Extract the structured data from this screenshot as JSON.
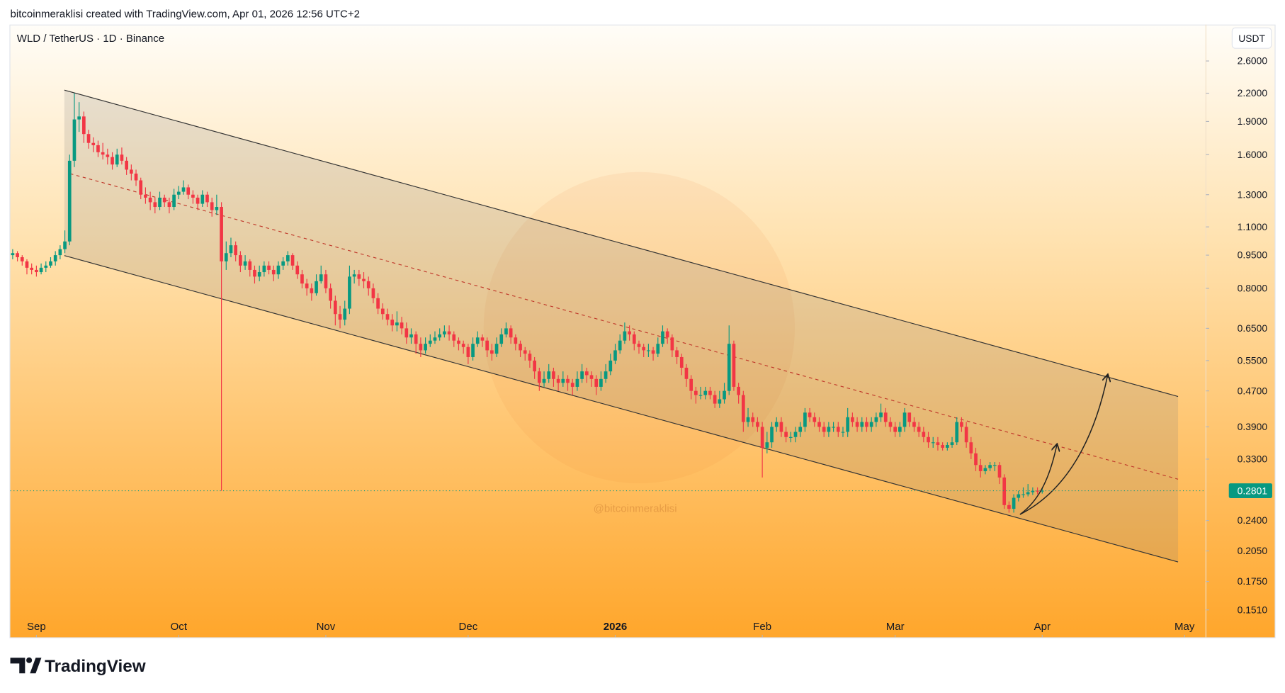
{
  "header": "bitcoinmeraklisi created with TradingView.com, Apr 01, 2026 12:56 UTC+2",
  "symbol": "WLD / TetherUS · 1D · Binance",
  "currency": "USDT",
  "watermark": "@bitcoinmeraklisi",
  "brand": "TradingView",
  "chart_data": {
    "type": "candlestick",
    "log_scale": true,
    "up_color": "#089981",
    "down_color": "#f23645",
    "xlim": [
      -5.5,
      246.5
    ],
    "xticks": [
      {
        "value": 0,
        "label": "Sep"
      },
      {
        "value": 30,
        "label": "Oct"
      },
      {
        "value": 61,
        "label": "Nov"
      },
      {
        "value": 91,
        "label": "Dec"
      },
      {
        "value": 122,
        "label": "2026"
      },
      {
        "value": 153,
        "label": "Feb"
      },
      {
        "value": 181,
        "label": "Mar"
      },
      {
        "value": 212,
        "label": "Apr"
      },
      {
        "value": 242,
        "label": "May"
      }
    ],
    "ylim": [
      0.131,
      3.14
    ],
    "yticks": [
      {
        "value": 2.6,
        "label": "2.6000"
      },
      {
        "value": 2.2,
        "label": "2.2000"
      },
      {
        "value": 1.9,
        "label": "1.9000"
      },
      {
        "value": 1.6,
        "label": "1.6000"
      },
      {
        "value": 1.3,
        "label": "1.3000"
      },
      {
        "value": 1.1,
        "label": "1.1000"
      },
      {
        "value": 0.95,
        "label": "0.9500"
      },
      {
        "value": 0.8,
        "label": "0.8000"
      },
      {
        "value": 0.65,
        "label": "0.6500"
      },
      {
        "value": 0.55,
        "label": "0.5500"
      },
      {
        "value": 0.47,
        "label": "0.4700"
      },
      {
        "value": 0.39,
        "label": "0.3900"
      },
      {
        "value": 0.33,
        "label": "0.3300"
      },
      {
        "value": 0.24,
        "label": "0.2400"
      },
      {
        "value": 0.205,
        "label": "0.2050"
      },
      {
        "value": 0.175,
        "label": "0.1750"
      },
      {
        "value": 0.151,
        "label": "0.1510"
      }
    ],
    "x": [
      -5,
      -4,
      -3,
      -2,
      -1,
      0,
      1,
      2,
      3,
      4,
      5,
      6,
      7,
      8,
      9,
      10,
      11,
      12,
      13,
      14,
      15,
      16,
      17,
      18,
      19,
      20,
      21,
      22,
      23,
      24,
      25,
      26,
      27,
      28,
      29,
      30,
      31,
      32,
      33,
      34,
      35,
      36,
      37,
      38,
      39,
      40,
      41,
      42,
      43,
      44,
      45,
      46,
      47,
      48,
      49,
      50,
      51,
      52,
      53,
      54,
      55,
      56,
      57,
      58,
      59,
      60,
      61,
      62,
      63,
      64,
      65,
      66,
      67,
      68,
      69,
      70,
      71,
      72,
      73,
      74,
      75,
      76,
      77,
      78,
      79,
      80,
      81,
      82,
      83,
      84,
      85,
      86,
      87,
      88,
      89,
      90,
      91,
      92,
      93,
      94,
      95,
      96,
      97,
      98,
      99,
      100,
      101,
      102,
      103,
      104,
      105,
      106,
      107,
      108,
      109,
      110,
      111,
      112,
      113,
      114,
      115,
      116,
      117,
      118,
      119,
      120,
      121,
      122,
      123,
      124,
      125,
      126,
      127,
      128,
      129,
      130,
      131,
      132,
      133,
      134,
      135,
      136,
      137,
      138,
      139,
      140,
      141,
      142,
      143,
      144,
      145,
      146,
      147,
      148,
      149,
      150,
      151,
      152,
      153,
      154,
      155,
      156,
      157,
      158,
      159,
      160,
      161,
      162,
      163,
      164,
      165,
      166,
      167,
      168,
      169,
      170,
      171,
      172,
      173,
      174,
      175,
      176,
      177,
      178,
      179,
      180,
      181,
      182,
      183,
      184,
      185,
      186,
      187,
      188,
      189,
      190,
      191,
      192,
      193,
      194,
      195,
      196,
      197,
      198,
      199,
      200,
      201,
      202,
      203,
      204,
      205,
      206,
      207,
      208,
      209,
      210,
      211,
      212
    ],
    "open": [
      0.95,
      0.96,
      0.94,
      0.92,
      0.89,
      0.88,
      0.87,
      0.89,
      0.9,
      0.92,
      0.95,
      0.98,
      1.02,
      1.55,
      1.92,
      1.95,
      1.78,
      1.7,
      1.68,
      1.62,
      1.6,
      1.58,
      1.52,
      1.6,
      1.55,
      1.48,
      1.45,
      1.4,
      1.3,
      1.28,
      1.25,
      1.22,
      1.28,
      1.25,
      1.22,
      1.3,
      1.32,
      1.35,
      1.3,
      1.28,
      1.24,
      1.3,
      1.25,
      1.2,
      1.22,
      0.92,
      0.96,
      1.0,
      0.95,
      0.9,
      0.92,
      0.88,
      0.85,
      0.87,
      0.9,
      0.88,
      0.86,
      0.9,
      0.92,
      0.95,
      0.9,
      0.86,
      0.82,
      0.8,
      0.78,
      0.83,
      0.86,
      0.8,
      0.75,
      0.7,
      0.68,
      0.72,
      0.85,
      0.86,
      0.84,
      0.83,
      0.8,
      0.76,
      0.72,
      0.7,
      0.68,
      0.66,
      0.67,
      0.65,
      0.62,
      0.63,
      0.6,
      0.58,
      0.6,
      0.61,
      0.62,
      0.63,
      0.64,
      0.63,
      0.61,
      0.6,
      0.59,
      0.56,
      0.6,
      0.62,
      0.61,
      0.58,
      0.57,
      0.6,
      0.63,
      0.65,
      0.62,
      0.6,
      0.58,
      0.57,
      0.55,
      0.52,
      0.49,
      0.5,
      0.52,
      0.5,
      0.49,
      0.5,
      0.49,
      0.48,
      0.5,
      0.52,
      0.51,
      0.5,
      0.48,
      0.5,
      0.52,
      0.55,
      0.58,
      0.61,
      0.64,
      0.63,
      0.6,
      0.59,
      0.58,
      0.58,
      0.57,
      0.6,
      0.64,
      0.62,
      0.58,
      0.56,
      0.53,
      0.5,
      0.47,
      0.46,
      0.46,
      0.47,
      0.46,
      0.44,
      0.45,
      0.47,
      0.6,
      0.48,
      0.46,
      0.4,
      0.41,
      0.4,
      0.39,
      0.35,
      0.36,
      0.39,
      0.4,
      0.38,
      0.37,
      0.37,
      0.38,
      0.39,
      0.42,
      0.41,
      0.4,
      0.39,
      0.38,
      0.39,
      0.39,
      0.38,
      0.38,
      0.41,
      0.4,
      0.39,
      0.4,
      0.39,
      0.4,
      0.41,
      0.42,
      0.4,
      0.39,
      0.38,
      0.39,
      0.42,
      0.4,
      0.39,
      0.38,
      0.37,
      0.36,
      0.36,
      0.355,
      0.35,
      0.355,
      0.36,
      0.4,
      0.39,
      0.36,
      0.34,
      0.32,
      0.31,
      0.315,
      0.32,
      0.32,
      0.3,
      0.26,
      0.255,
      0.27,
      0.275,
      0.275,
      0.278,
      0.28,
      0.279
    ],
    "high": [
      0.98,
      0.97,
      0.95,
      0.93,
      0.91,
      0.9,
      0.91,
      0.92,
      0.94,
      0.97,
      1.0,
      1.08,
      1.6,
      2.2,
      2.1,
      2.0,
      1.82,
      1.75,
      1.72,
      1.7,
      1.65,
      1.62,
      1.65,
      1.66,
      1.58,
      1.52,
      1.48,
      1.42,
      1.35,
      1.32,
      1.28,
      1.32,
      1.3,
      1.28,
      1.34,
      1.36,
      1.4,
      1.37,
      1.33,
      1.3,
      1.33,
      1.32,
      1.28,
      1.3,
      1.25,
      1.02,
      1.04,
      1.02,
      0.97,
      0.95,
      0.93,
      0.9,
      0.9,
      0.92,
      0.92,
      0.9,
      0.92,
      0.94,
      0.97,
      0.96,
      0.92,
      0.88,
      0.84,
      0.82,
      0.86,
      0.9,
      0.88,
      0.82,
      0.77,
      0.73,
      0.75,
      0.9,
      0.88,
      0.88,
      0.87,
      0.85,
      0.82,
      0.78,
      0.74,
      0.72,
      0.7,
      0.71,
      0.69,
      0.67,
      0.65,
      0.64,
      0.62,
      0.62,
      0.63,
      0.64,
      0.65,
      0.66,
      0.66,
      0.64,
      0.62,
      0.61,
      0.6,
      0.62,
      0.64,
      0.63,
      0.62,
      0.6,
      0.62,
      0.65,
      0.67,
      0.66,
      0.63,
      0.61,
      0.59,
      0.58,
      0.56,
      0.53,
      0.52,
      0.54,
      0.53,
      0.51,
      0.52,
      0.51,
      0.5,
      0.52,
      0.54,
      0.53,
      0.52,
      0.51,
      0.52,
      0.54,
      0.57,
      0.6,
      0.63,
      0.67,
      0.66,
      0.64,
      0.61,
      0.6,
      0.6,
      0.59,
      0.62,
      0.66,
      0.65,
      0.63,
      0.59,
      0.57,
      0.54,
      0.51,
      0.48,
      0.48,
      0.48,
      0.48,
      0.47,
      0.47,
      0.49,
      0.66,
      0.61,
      0.49,
      0.47,
      0.43,
      0.42,
      0.41,
      0.4,
      0.38,
      0.4,
      0.41,
      0.41,
      0.39,
      0.38,
      0.39,
      0.4,
      0.43,
      0.43,
      0.42,
      0.41,
      0.4,
      0.4,
      0.4,
      0.4,
      0.39,
      0.43,
      0.42,
      0.41,
      0.41,
      0.41,
      0.41,
      0.42,
      0.44,
      0.43,
      0.41,
      0.4,
      0.4,
      0.43,
      0.42,
      0.41,
      0.4,
      0.39,
      0.38,
      0.37,
      0.37,
      0.36,
      0.36,
      0.37,
      0.41,
      0.41,
      0.4,
      0.37,
      0.35,
      0.33,
      0.32,
      0.325,
      0.325,
      0.325,
      0.305,
      0.265,
      0.275,
      0.28,
      0.285,
      0.29,
      0.285,
      0.285,
      0.284
    ],
    "low": [
      0.93,
      0.92,
      0.9,
      0.86,
      0.86,
      0.85,
      0.86,
      0.87,
      0.89,
      0.9,
      0.93,
      0.96,
      1.0,
      1.5,
      1.8,
      1.7,
      1.65,
      1.62,
      1.58,
      1.56,
      1.52,
      1.48,
      1.5,
      1.52,
      1.44,
      1.4,
      1.36,
      1.27,
      1.24,
      1.2,
      1.18,
      1.2,
      1.22,
      1.18,
      1.2,
      1.27,
      1.3,
      1.27,
      1.24,
      1.2,
      1.22,
      1.22,
      1.16,
      1.17,
      0.28,
      0.88,
      0.94,
      0.92,
      0.87,
      0.88,
      0.85,
      0.82,
      0.83,
      0.85,
      0.86,
      0.83,
      0.84,
      0.88,
      0.9,
      0.88,
      0.84,
      0.8,
      0.77,
      0.75,
      0.77,
      0.82,
      0.78,
      0.72,
      0.66,
      0.65,
      0.66,
      0.7,
      0.82,
      0.81,
      0.8,
      0.77,
      0.74,
      0.7,
      0.68,
      0.66,
      0.64,
      0.64,
      0.63,
      0.6,
      0.6,
      0.57,
      0.56,
      0.57,
      0.59,
      0.6,
      0.61,
      0.62,
      0.61,
      0.59,
      0.58,
      0.57,
      0.54,
      0.55,
      0.59,
      0.59,
      0.56,
      0.55,
      0.56,
      0.59,
      0.62,
      0.6,
      0.58,
      0.56,
      0.55,
      0.53,
      0.5,
      0.47,
      0.48,
      0.49,
      0.48,
      0.47,
      0.48,
      0.47,
      0.46,
      0.47,
      0.49,
      0.49,
      0.48,
      0.46,
      0.47,
      0.49,
      0.51,
      0.54,
      0.57,
      0.6,
      0.61,
      0.58,
      0.57,
      0.56,
      0.56,
      0.55,
      0.56,
      0.59,
      0.6,
      0.56,
      0.54,
      0.51,
      0.48,
      0.45,
      0.44,
      0.45,
      0.45,
      0.45,
      0.43,
      0.43,
      0.44,
      0.46,
      0.47,
      0.44,
      0.38,
      0.39,
      0.39,
      0.38,
      0.3,
      0.34,
      0.35,
      0.38,
      0.37,
      0.36,
      0.36,
      0.36,
      0.37,
      0.38,
      0.4,
      0.39,
      0.38,
      0.37,
      0.37,
      0.38,
      0.37,
      0.37,
      0.37,
      0.39,
      0.38,
      0.38,
      0.38,
      0.38,
      0.39,
      0.4,
      0.39,
      0.38,
      0.37,
      0.37,
      0.38,
      0.39,
      0.38,
      0.37,
      0.36,
      0.35,
      0.35,
      0.345,
      0.345,
      0.345,
      0.35,
      0.355,
      0.38,
      0.35,
      0.33,
      0.31,
      0.3,
      0.305,
      0.31,
      0.31,
      0.29,
      0.255,
      0.25,
      0.25,
      0.265,
      0.27,
      0.272,
      0.274,
      0.275,
      0.276
    ],
    "close": [
      0.96,
      0.94,
      0.92,
      0.89,
      0.88,
      0.87,
      0.89,
      0.9,
      0.92,
      0.95,
      0.98,
      1.02,
      1.55,
      1.92,
      1.95,
      1.78,
      1.7,
      1.68,
      1.62,
      1.6,
      1.58,
      1.52,
      1.6,
      1.55,
      1.48,
      1.45,
      1.4,
      1.3,
      1.28,
      1.25,
      1.22,
      1.28,
      1.25,
      1.22,
      1.3,
      1.32,
      1.35,
      1.3,
      1.28,
      1.24,
      1.3,
      1.25,
      1.2,
      1.22,
      0.92,
      0.96,
      1.0,
      0.95,
      0.9,
      0.92,
      0.88,
      0.85,
      0.87,
      0.9,
      0.88,
      0.86,
      0.9,
      0.92,
      0.95,
      0.9,
      0.86,
      0.82,
      0.8,
      0.78,
      0.83,
      0.86,
      0.8,
      0.75,
      0.7,
      0.68,
      0.72,
      0.85,
      0.86,
      0.84,
      0.83,
      0.8,
      0.76,
      0.72,
      0.7,
      0.68,
      0.66,
      0.67,
      0.65,
      0.62,
      0.63,
      0.6,
      0.58,
      0.6,
      0.61,
      0.62,
      0.63,
      0.64,
      0.63,
      0.61,
      0.6,
      0.59,
      0.56,
      0.6,
      0.62,
      0.61,
      0.58,
      0.57,
      0.6,
      0.63,
      0.65,
      0.62,
      0.6,
      0.58,
      0.57,
      0.55,
      0.52,
      0.49,
      0.5,
      0.52,
      0.5,
      0.49,
      0.5,
      0.49,
      0.48,
      0.5,
      0.52,
      0.51,
      0.5,
      0.48,
      0.5,
      0.52,
      0.55,
      0.58,
      0.61,
      0.64,
      0.63,
      0.6,
      0.59,
      0.58,
      0.58,
      0.57,
      0.6,
      0.64,
      0.62,
      0.58,
      0.56,
      0.53,
      0.5,
      0.47,
      0.46,
      0.46,
      0.47,
      0.46,
      0.44,
      0.45,
      0.47,
      0.6,
      0.48,
      0.46,
      0.4,
      0.41,
      0.4,
      0.39,
      0.35,
      0.36,
      0.39,
      0.4,
      0.38,
      0.37,
      0.37,
      0.38,
      0.39,
      0.42,
      0.41,
      0.4,
      0.39,
      0.38,
      0.39,
      0.39,
      0.38,
      0.38,
      0.41,
      0.4,
      0.39,
      0.4,
      0.39,
      0.4,
      0.41,
      0.42,
      0.4,
      0.39,
      0.38,
      0.39,
      0.42,
      0.4,
      0.39,
      0.38,
      0.37,
      0.36,
      0.36,
      0.355,
      0.35,
      0.355,
      0.36,
      0.4,
      0.39,
      0.36,
      0.34,
      0.32,
      0.31,
      0.315,
      0.32,
      0.32,
      0.3,
      0.26,
      0.255,
      0.27,
      0.275,
      0.275,
      0.278,
      0.28,
      0.279,
      0.2801
    ]
  }
}
